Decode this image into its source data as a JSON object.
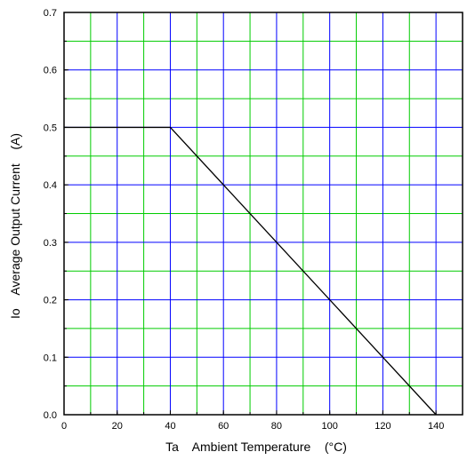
{
  "chart_data": {
    "type": "line",
    "xlabel": "Ta    Ambient Temperature    (°C)",
    "ylabel": "Io    Average Output Current    (A)",
    "xlim": [
      0,
      150
    ],
    "ylim": [
      0,
      0.7
    ],
    "x_ticks": [
      0,
      20,
      40,
      60,
      80,
      100,
      120,
      140
    ],
    "x_tick_labels": [
      "0",
      "20",
      "40",
      "60",
      "80",
      "100",
      "120",
      "140"
    ],
    "y_ticks": [
      0,
      0.1,
      0.2,
      0.3,
      0.4,
      0.5,
      0.6,
      0.7
    ],
    "y_tick_labels": [
      "0.0",
      "0.1",
      "0.2",
      "0.3",
      "0.4",
      "0.5",
      "0.6",
      "0.7"
    ],
    "grid": true,
    "major_grid_color": "#0000ff",
    "minor_grid_color": "#00cc00",
    "x_major_step": 20,
    "x_minor_step": 10,
    "y_major_step": 0.1,
    "y_minor_step": 0.05,
    "series": [
      {
        "x": [
          0,
          40,
          140
        ],
        "y": [
          0.5,
          0.5,
          0
        ],
        "color": "#000000"
      }
    ]
  }
}
